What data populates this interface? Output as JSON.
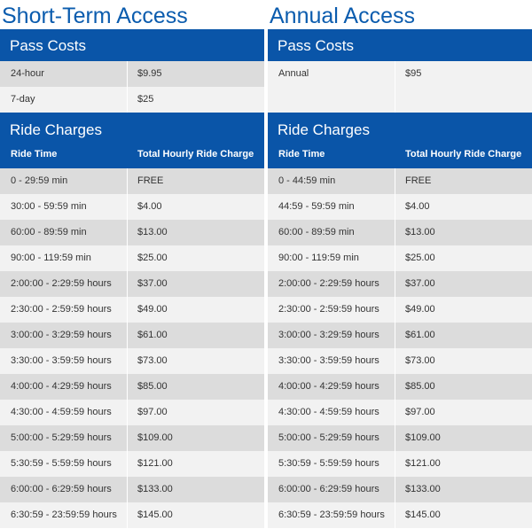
{
  "short_term": {
    "title": "Short-Term Access",
    "pass_costs_label": "Pass Costs",
    "pass_rows": [
      {
        "name": "24-hour",
        "price": "$9.95"
      },
      {
        "name": "7-day",
        "price": "$25"
      }
    ],
    "ride_charges_label": "Ride Charges",
    "columns": [
      "Ride Time",
      "Total Hourly Ride Charge"
    ],
    "rows": [
      {
        "time": "0 - 29:59 min",
        "charge": "FREE"
      },
      {
        "time": "30:00 - 59:59 min",
        "charge": "$4.00"
      },
      {
        "time": "60:00 - 89:59 min",
        "charge": "$13.00"
      },
      {
        "time": "90:00 - 119:59 min",
        "charge": "$25.00"
      },
      {
        "time": "2:00:00 - 2:29:59 hours",
        "charge": "$37.00"
      },
      {
        "time": "2:30:00 - 2:59:59 hours",
        "charge": "$49.00"
      },
      {
        "time": "3:00:00 - 3:29:59 hours",
        "charge": "$61.00"
      },
      {
        "time": "3:30:00 - 3:59:59 hours",
        "charge": "$73.00"
      },
      {
        "time": "4:00:00 - 4:29:59 hours",
        "charge": "$85.00"
      },
      {
        "time": "4:30:00 - 4:59:59 hours",
        "charge": "$97.00"
      },
      {
        "time": "5:00:00 - 5:29:59 hours",
        "charge": "$109.00"
      },
      {
        "time": "5:30:59 - 5:59:59 hours",
        "charge": "$121.00"
      },
      {
        "time": "6:00:00 - 6:29:59 hours",
        "charge": "$133.00"
      },
      {
        "time": "6:30:59 - 23:59:59 hours",
        "charge": "$145.00"
      }
    ]
  },
  "annual": {
    "title": "Annual Access",
    "pass_costs_label": "Pass Costs",
    "pass_rows": [
      {
        "name": "Annual",
        "price": "$95"
      }
    ],
    "ride_charges_label": "Ride Charges",
    "columns": [
      "Ride Time",
      "Total Hourly Ride Charge"
    ],
    "rows": [
      {
        "time": "0 - 44:59 min",
        "charge": "FREE"
      },
      {
        "time": "44:59 - 59:59 min",
        "charge": "$4.00"
      },
      {
        "time": "60:00 - 89:59 min",
        "charge": "$13.00"
      },
      {
        "time": "90:00 - 119:59 min",
        "charge": "$25.00"
      },
      {
        "time": "2:00:00 - 2:29:59 hours",
        "charge": "$37.00"
      },
      {
        "time": "2:30:00 - 2:59:59 hours",
        "charge": "$49.00"
      },
      {
        "time": "3:00:00 - 3:29:59 hours",
        "charge": "$61.00"
      },
      {
        "time": "3:30:00 - 3:59:59 hours",
        "charge": "$73.00"
      },
      {
        "time": "4:00:00 - 4:29:59 hours",
        "charge": "$85.00"
      },
      {
        "time": "4:30:00 - 4:59:59 hours",
        "charge": "$97.00"
      },
      {
        "time": "5:00:00 - 5:29:59 hours",
        "charge": "$109.00"
      },
      {
        "time": "5:30:59 - 5:59:59 hours",
        "charge": "$121.00"
      },
      {
        "time": "6:00:00 - 6:29:59 hours",
        "charge": "$133.00"
      },
      {
        "time": "6:30:59 - 23:59:59 hours",
        "charge": "$145.00"
      }
    ]
  },
  "colors": {
    "brand_blue": "#0a55a8",
    "title_blue": "#0b5cae",
    "row_shade": "#dcdcdc",
    "row_light": "#f2f2f2"
  }
}
